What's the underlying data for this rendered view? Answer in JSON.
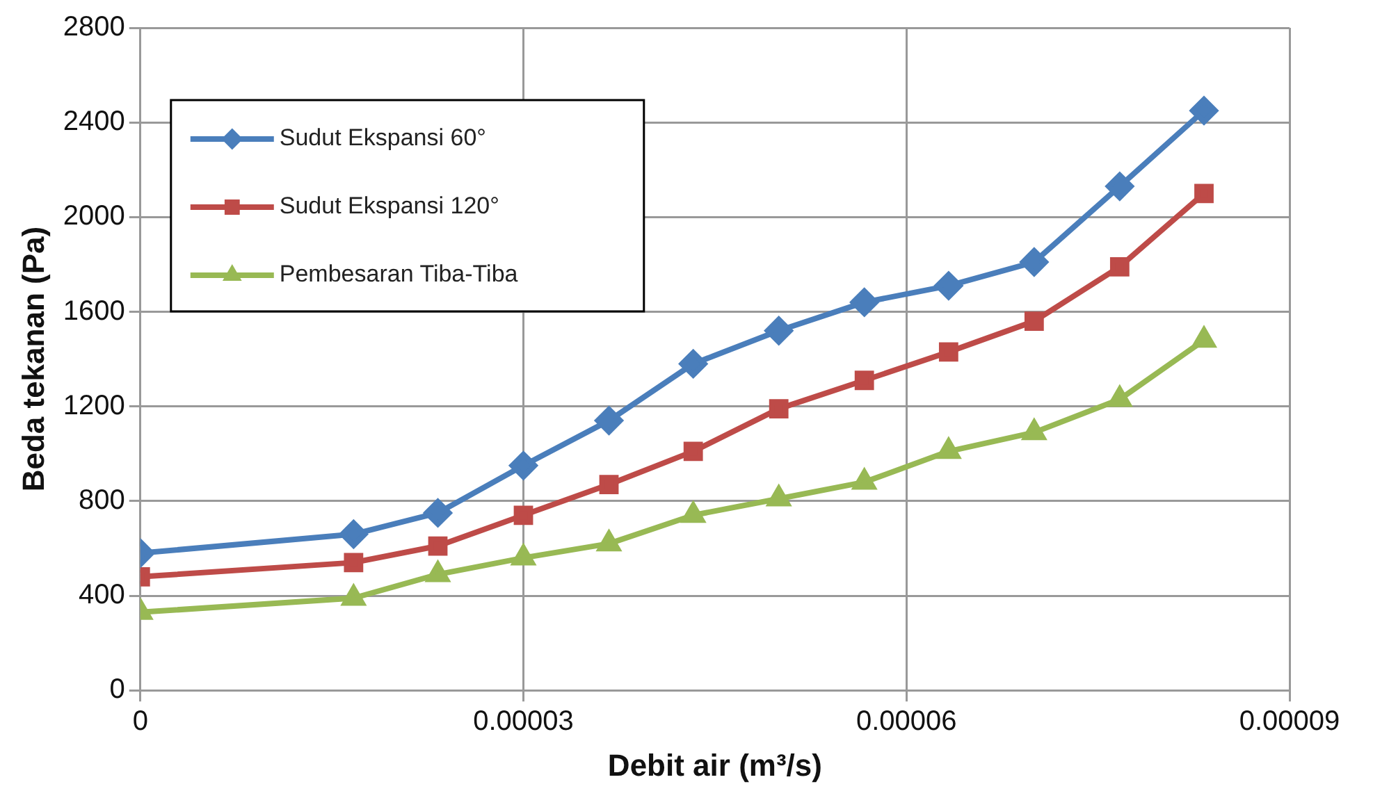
{
  "chart_data": {
    "type": "line",
    "xlabel": "Debit air (m³/s)",
    "ylabel": "Beda tekanan (Pa)",
    "x": [
      0,
      1.67e-05,
      2.33e-05,
      3e-05,
      3.67e-05,
      4.33e-05,
      5e-05,
      5.67e-05,
      6.33e-05,
      7e-05,
      7.67e-05,
      8.33e-05
    ],
    "series": [
      {
        "name": "Sudut Ekspansi 60°",
        "color": "#4a7ebb",
        "marker": "diamond",
        "values": [
          580,
          660,
          750,
          950,
          1140,
          1380,
          1520,
          1640,
          1710,
          1810,
          2130,
          2450
        ]
      },
      {
        "name": "Sudut Ekspansi 120°",
        "color": "#be4b48",
        "marker": "square",
        "values": [
          480,
          540,
          610,
          740,
          870,
          1010,
          1190,
          1310,
          1430,
          1560,
          1790,
          2100
        ]
      },
      {
        "name": "Pembesaran Tiba-Tiba",
        "color": "#98b954",
        "marker": "triangle",
        "values": [
          330,
          390,
          490,
          560,
          620,
          740,
          810,
          880,
          1010,
          1090,
          1230,
          1480
        ]
      }
    ],
    "xlim": [
      0,
      9e-05
    ],
    "xticks": [
      0,
      {
        "value": 3e-05,
        "label": "0.00003"
      },
      {
        "value": 6e-05,
        "label": "0.00006"
      },
      {
        "value": 9e-05,
        "label": "0.00009"
      }
    ],
    "ylim": [
      0,
      2800
    ],
    "yticks": [
      0,
      400,
      800,
      1200,
      1600,
      2000,
      2400,
      2800
    ],
    "grid": true,
    "legend": "top left"
  }
}
